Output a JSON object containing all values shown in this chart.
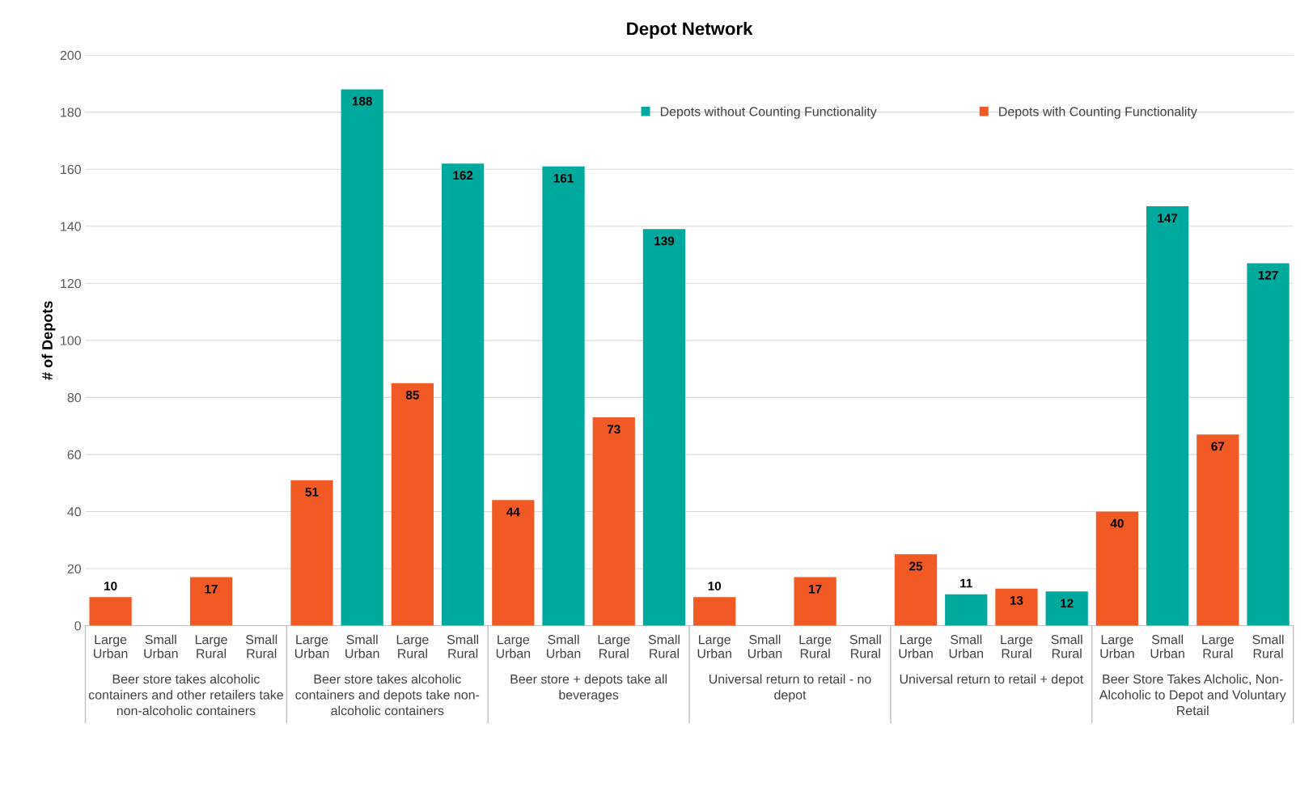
{
  "chart_data": {
    "type": "bar",
    "title": "Depot Network",
    "ylabel": "# of Depots",
    "categories": [
      "Large\nUrban",
      "Small\nUrban",
      "Large\nRural",
      "Small\nRural",
      "Large\nUrban",
      "Small\nUrban",
      "Large\nRural",
      "Small\nRural",
      "Large\nUrban",
      "Small\nUrban",
      "Large\nRural",
      "Small\nRural",
      "Large\nUrban",
      "Small\nUrban",
      "Large\nRural",
      "Small\nRural",
      "Large\nUrban",
      "Small\nUrban",
      "Large\nRural",
      "Small\nRural",
      "Large\nUrban",
      "Small\nUrban",
      "Large\nRural",
      "Small\nRural"
    ],
    "series": [
      {
        "name": "Depots without Counting Functionality",
        "color": "#00a99d",
        "values": [
          null,
          null,
          null,
          null,
          null,
          188,
          null,
          162,
          null,
          161,
          null,
          139,
          null,
          null,
          null,
          null,
          null,
          11,
          null,
          12,
          null,
          147,
          null,
          127
        ]
      },
      {
        "name": "Depots with Counting Functionality",
        "color": "#f15a24",
        "values": [
          10,
          null,
          17,
          null,
          51,
          null,
          85,
          null,
          44,
          null,
          73,
          null,
          10,
          null,
          17,
          null,
          25,
          null,
          13,
          null,
          40,
          null,
          67,
          null
        ]
      }
    ],
    "annotations": [
      "Beer store takes alcoholic\ncontainers and other retailers take\nnon-alcoholic containers",
      "Beer store takes alcoholic\ncontainers and depots take non-\nalcoholic containers",
      "Beer store + depots take all\nbeverages",
      "Universal return to retail - no\ndepot",
      "Universal return to retail + depot",
      "Beer Store Takes Alcholic, Non-\nAlcoholic to Depot and Voluntary\nRetail"
    ],
    "ylim": [
      0,
      200
    ],
    "yticks": [
      0,
      20,
      40,
      60,
      80,
      100,
      120,
      140,
      160,
      180,
      200
    ],
    "grid": "y",
    "legend": "top right",
    "data_labels": true
  }
}
